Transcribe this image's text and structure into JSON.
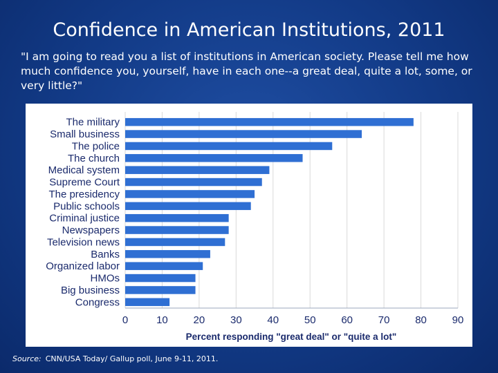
{
  "slide": {
    "title": "Confidence in American Institutions, 2011",
    "question": "\"I am going to read you a list of institutions in American society.  Please tell me how much confidence you, yourself, have in each one--a great deal, quite a lot, some, or very little?\"",
    "source_label": "Source:",
    "source_text": "CNN/USA Today/ Gallup poll, June 9-11, 2011."
  },
  "colors": {
    "bar": "#2f6fd3",
    "grid": "#d9d9d9",
    "axis": "#555555"
  },
  "chart_data": {
    "type": "bar",
    "orientation": "horizontal",
    "categories": [
      "The military",
      "Small business",
      "The police",
      "The church",
      "Medical system",
      "Supreme Court",
      "The presidency",
      "Public schools",
      "Criminal justice",
      "Newspapers",
      "Television news",
      "Banks",
      "Organized labor",
      "HMOs",
      "Big business",
      "Congress"
    ],
    "values": [
      78,
      64,
      56,
      48,
      39,
      37,
      35,
      34,
      28,
      28,
      27,
      23,
      21,
      19,
      19,
      12
    ],
    "xlabel": "Percent responding \"great deal\" or \"quite a lot\"",
    "xlim": [
      0,
      90
    ],
    "xticks": [
      0,
      10,
      20,
      30,
      40,
      50,
      60,
      70,
      80,
      90
    ],
    "grid": "vertical"
  }
}
